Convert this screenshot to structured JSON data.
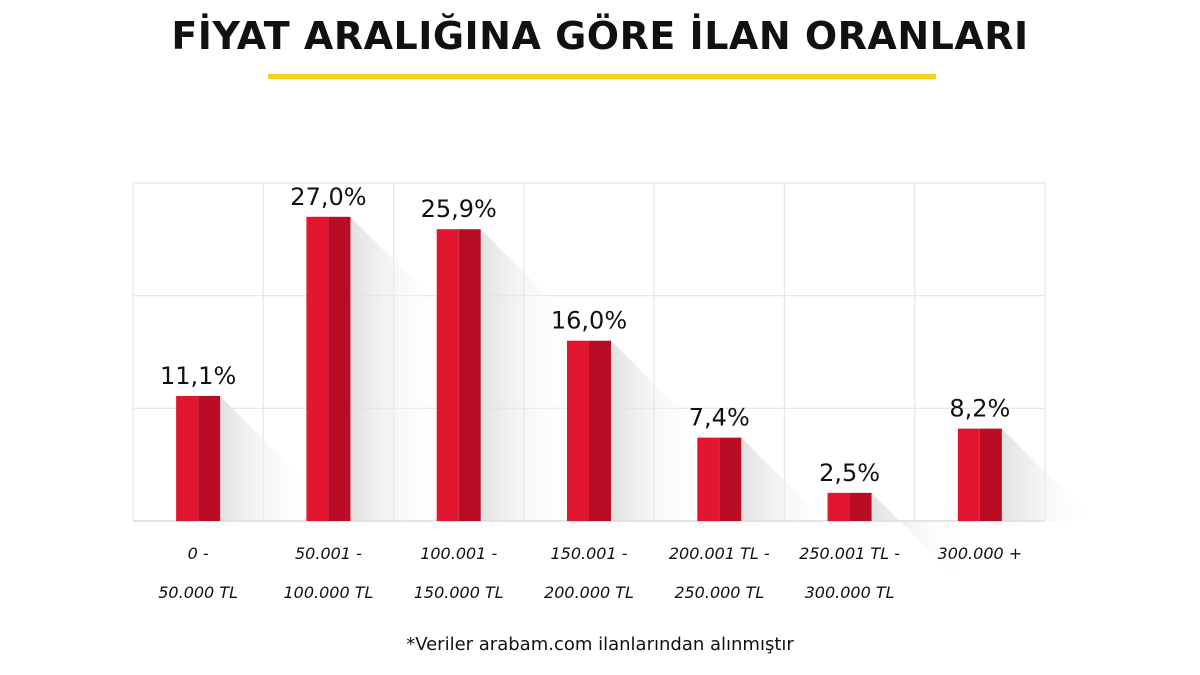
{
  "title": "FİYAT ARALIĞINA GÖRE İLAN ORANLARI",
  "footnote": "*Veriler arabam.com ilanlarından alınmıştır",
  "colors": {
    "bar": "#e2162f",
    "bar_dark": "#b80d24",
    "accent_underline": "#f5d213",
    "grid": "#e6e6e6"
  },
  "chart_data": {
    "type": "bar",
    "categories": [
      [
        "0 -",
        "50.000 TL"
      ],
      [
        "50.001 -",
        "100.000 TL"
      ],
      [
        "100.001 -",
        "150.000 TL"
      ],
      [
        "150.001 -",
        "200.000 TL"
      ],
      [
        "200.001 TL -",
        "250.000 TL"
      ],
      [
        "250.001 TL -",
        "300.000 TL"
      ],
      [
        "300.000 +"
      ]
    ],
    "values": [
      11.1,
      27.0,
      25.9,
      16.0,
      7.4,
      2.5,
      8.2
    ],
    "value_labels": [
      "11,1%",
      "27,0%",
      "25,9%",
      "16,0%",
      "7,4%",
      "2,5%",
      "8,2%"
    ],
    "unit": "%",
    "ylim": [
      0,
      30
    ],
    "grid": true,
    "legend": "none"
  }
}
